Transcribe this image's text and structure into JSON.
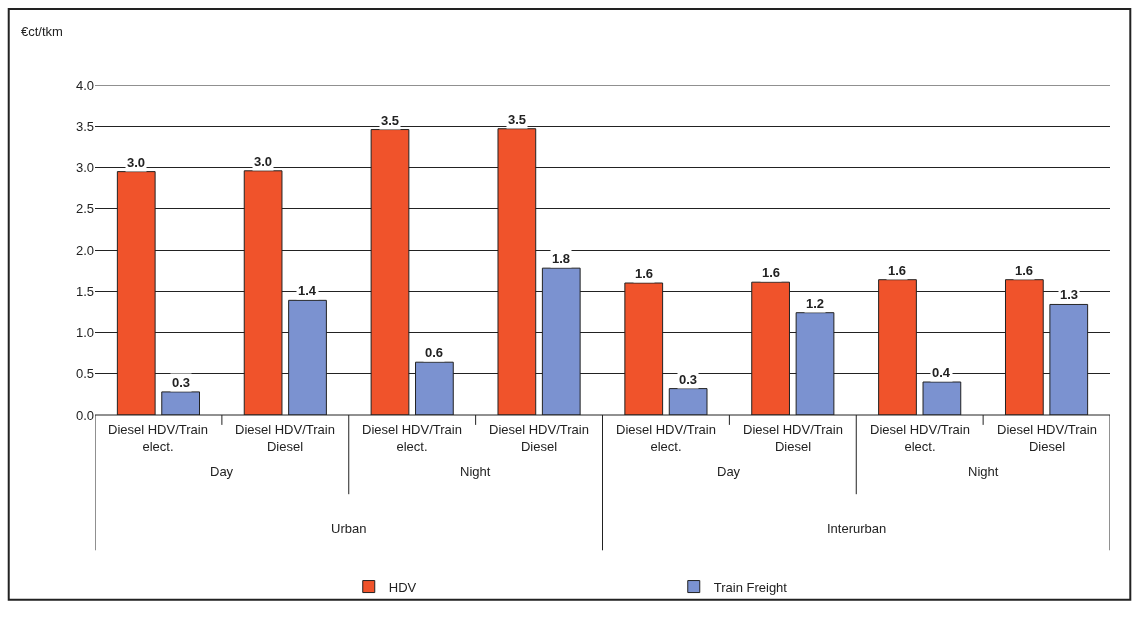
{
  "chart_data": {
    "type": "bar",
    "ylabel": "€ct/tkm",
    "categories": [
      "Diesel HDV/Train elect.",
      "Diesel HDV/Train Diesel",
      "Diesel HDV/Train elect.",
      "Diesel HDV/Train Diesel",
      "Diesel HDV/Train elect.",
      "Diesel HDV/Train Diesel",
      "Diesel HDV/Train elect.",
      "Diesel HDV/Train Diesel"
    ],
    "series": [
      {
        "name": "HDV",
        "color": "#f0532b",
        "values": [
          2.95,
          2.96,
          3.46,
          3.47,
          1.6,
          1.61,
          1.64,
          1.64
        ],
        "value_labels": [
          "3.0",
          "3.0",
          "3.5",
          "3.5",
          "1.6",
          "1.6",
          "1.6",
          "1.6"
        ]
      },
      {
        "name": "Train Freight",
        "color": "#7b92d0",
        "values": [
          0.28,
          1.39,
          0.64,
          1.78,
          0.32,
          1.24,
          0.4,
          1.34
        ],
        "value_labels": [
          "0.3",
          "1.4",
          "0.6",
          "1.8",
          "0.3",
          "1.2",
          "0.4",
          "1.3"
        ]
      }
    ],
    "annotations": [
      "Day",
      "Night",
      "Day",
      "Night",
      "Urban",
      "Interurban"
    ],
    "ylim": [
      0,
      4
    ],
    "yticks": [
      {
        "value": 0,
        "label": "0.0"
      },
      {
        "value": 0.5,
        "label": "0.5"
      },
      {
        "value": 1,
        "label": "1.0"
      },
      {
        "value": 1.5,
        "label": "1.5"
      },
      {
        "value": 2,
        "label": "2.0"
      },
      {
        "value": 2.5,
        "label": "2.5"
      },
      {
        "value": 3,
        "label": "3.0"
      },
      {
        "value": 3.5,
        "label": "3.5"
      },
      {
        "value": 4,
        "label": "4.0"
      }
    ],
    "grid": "y",
    "legend": "bottom"
  }
}
